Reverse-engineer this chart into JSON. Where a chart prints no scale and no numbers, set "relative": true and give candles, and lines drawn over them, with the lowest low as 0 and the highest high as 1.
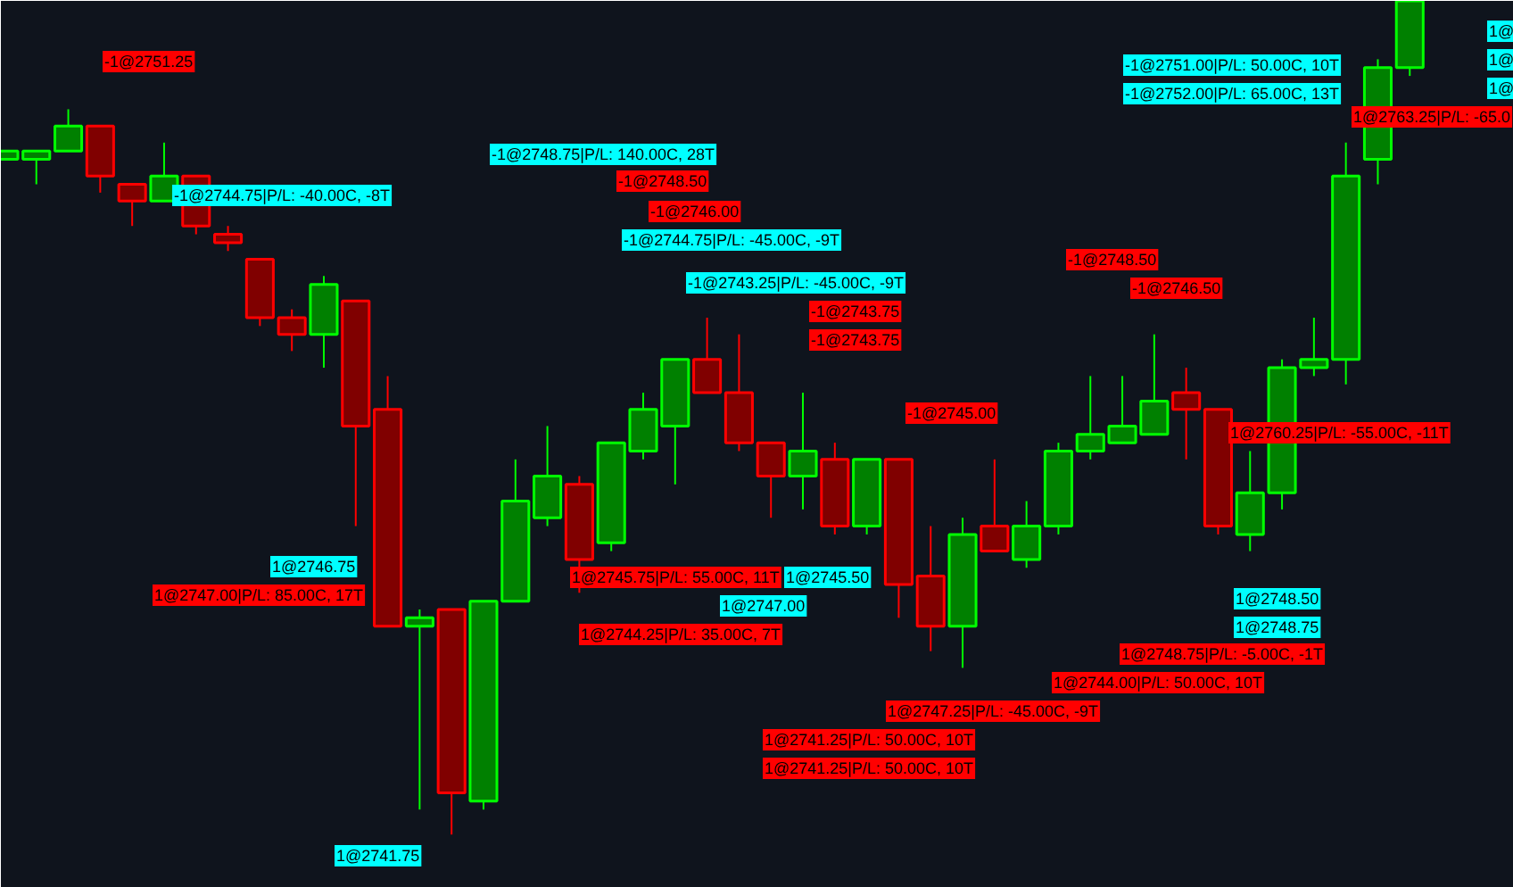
{
  "chart_data": {
    "type": "candlestick",
    "relative": true,
    "categories": [
      null,
      null,
      null,
      null,
      null,
      null,
      null,
      null,
      null,
      null,
      null,
      null,
      null,
      null,
      null,
      null,
      null,
      null,
      null,
      null,
      null,
      null,
      null,
      null,
      null,
      null,
      null,
      null,
      null,
      null,
      null,
      null,
      null,
      null,
      null,
      null,
      null,
      null,
      null,
      null,
      null,
      null,
      null,
      null,
      null
    ],
    "ohlc": [
      [
        0.81,
        0.82,
        0.81,
        0.82
      ],
      [
        0.81,
        0.82,
        0.78,
        0.82
      ],
      [
        0.82,
        0.87,
        0.82,
        0.85
      ],
      [
        0.85,
        0.85,
        0.77,
        0.79
      ],
      [
        0.78,
        0.78,
        0.73,
        0.76
      ],
      [
        0.76,
        0.83,
        0.76,
        0.79
      ],
      [
        0.79,
        0.79,
        0.72,
        0.73
      ],
      [
        0.72,
        0.73,
        0.7,
        0.71
      ],
      [
        0.69,
        0.69,
        0.61,
        0.62
      ],
      [
        0.62,
        0.63,
        0.58,
        0.6
      ],
      [
        0.6,
        0.67,
        0.56,
        0.66
      ],
      [
        0.64,
        0.64,
        0.37,
        0.49
      ],
      [
        0.51,
        0.55,
        0.25,
        0.25
      ],
      [
        0.25,
        0.27,
        0.03,
        0.26
      ],
      [
        0.27,
        0.27,
        0,
        0.05
      ],
      [
        0.04,
        0.28,
        0.03,
        0.28
      ],
      [
        0.28,
        0.45,
        0.28,
        0.4
      ],
      [
        0.38,
        0.49,
        0.37,
        0.43
      ],
      [
        0.42,
        0.43,
        0.29,
        0.33
      ],
      [
        0.35,
        0.47,
        0.34,
        0.47
      ],
      [
        0.46,
        0.53,
        0.45,
        0.51
      ],
      [
        0.49,
        0.57,
        0.42,
        0.57
      ],
      [
        0.57,
        0.62,
        0.53,
        0.53
      ],
      [
        0.53,
        0.6,
        0.46,
        0.47
      ],
      [
        0.47,
        0.47,
        0.38,
        0.43
      ],
      [
        0.43,
        0.53,
        0.39,
        0.46
      ],
      [
        0.45,
        0.47,
        0.36,
        0.37
      ],
      [
        0.37,
        0.45,
        0.36,
        0.45
      ],
      [
        0.45,
        0.45,
        0.26,
        0.3
      ],
      [
        0.31,
        0.37,
        0.22,
        0.25
      ],
      [
        0.25,
        0.38,
        0.2,
        0.36
      ],
      [
        0.37,
        0.45,
        0.34,
        0.34
      ],
      [
        0.33,
        0.4,
        0.32,
        0.37
      ],
      [
        0.37,
        0.47,
        0.36,
        0.46
      ],
      [
        0.46,
        0.55,
        0.45,
        0.48
      ],
      [
        0.47,
        0.55,
        0.47,
        0.49
      ],
      [
        0.48,
        0.6,
        0.48,
        0.52
      ],
      [
        0.53,
        0.56,
        0.45,
        0.51
      ],
      [
        0.51,
        0.51,
        0.36,
        0.37
      ],
      [
        0.36,
        0.46,
        0.34,
        0.41
      ],
      [
        0.41,
        0.57,
        0.39,
        0.56
      ],
      [
        0.56,
        0.62,
        0.55,
        0.57
      ],
      [
        0.57,
        0.83,
        0.54,
        0.79
      ],
      [
        0.81,
        0.93,
        0.78,
        0.92
      ],
      [
        0.92,
        1,
        0.91,
        1
      ]
    ],
    "annotations": [
      "-1@2751.25",
      "-1@2744.75|P/L: -40.00C, -8T",
      "1@2746.75",
      "1@2747.00|P/L: 85.00C, 17T",
      "1@2741.75",
      "-1@2748.75|P/L: 140.00C, 28T",
      "-1@2748.50",
      "-1@2746.00",
      "-1@2744.75|P/L: -45.00C, -9T",
      "-1@2743.25|P/L: -45.00C, -9T",
      "-1@2743.75",
      "-1@2743.75",
      "-1@2745.00",
      "1@2745.75|P/L: 55.00C, 11T",
      "1@2745.50",
      "1@2747.00",
      "1@2744.25|P/L: 35.00C, 7T",
      "-1@2748.50",
      "-1@2746.50",
      "1@2760.25|P/L: -55.00C, -11T",
      "-1@2751.00|P/L: 50.00C, 10T",
      "-1@2752.00|P/L: 65.00C, 13T",
      "1@2763.25|P/L: -65.0",
      "1@",
      "1@",
      "1@",
      "1@2748.50",
      "1@2748.75",
      "1@2748.75|P/L: -5.00C, -1T",
      "1@2744.00|P/L: 50.00C, 10T",
      "1@2747.25|P/L: -45.00C, -9T",
      "1@2741.25|P/L: 50.00C, 10T",
      "1@2741.25|P/L: 50.00C, 10T"
    ]
  }
}
